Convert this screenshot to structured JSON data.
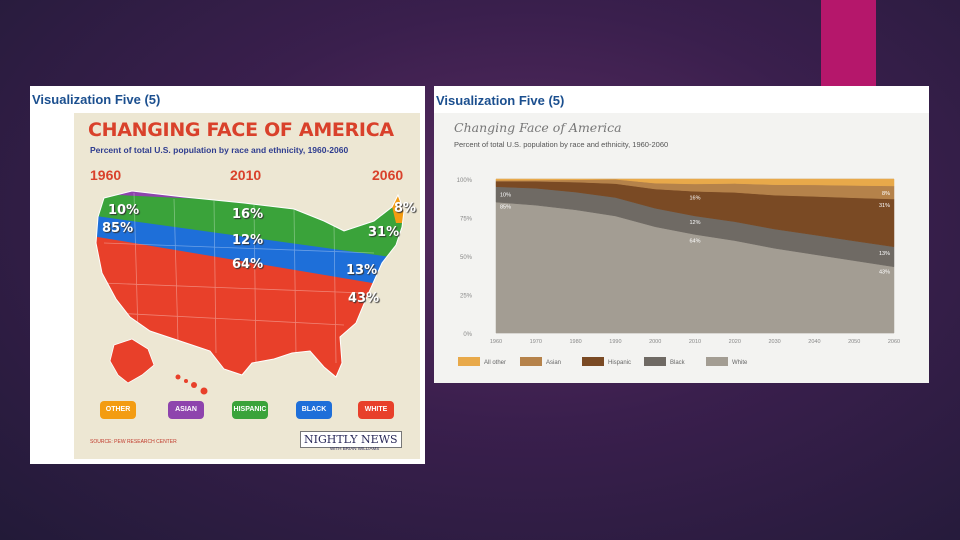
{
  "left_panel": {
    "heading": "Visualization Five (5)",
    "map": {
      "title": "CHANGING FACE OF AMERICA",
      "subtitle": "Percent of total U.S. population by race and ethnicity, 1960-2060",
      "years": [
        "1960",
        "2010",
        "2060"
      ],
      "labels": {
        "other_2060": "8%",
        "black_1960": "10%",
        "white_1960": "85%",
        "hispanic_2010": "16%",
        "black_2010": "12%",
        "white_2010": "64%",
        "hispanic_2060": "31%",
        "black_2060": "13%",
        "white_2060": "43%"
      },
      "legend": [
        {
          "label": "OTHER",
          "color": "#f39c12"
        },
        {
          "label": "ASIAN",
          "color": "#8e44ad"
        },
        {
          "label": "HISPANIC",
          "color": "#3aa33a"
        },
        {
          "label": "BLACK",
          "color": "#1e6fd9"
        },
        {
          "label": "WHITE",
          "color": "#e8402a"
        }
      ],
      "source": "SOURCE: PEW RESEARCH CENTER",
      "logo_text": "NIGHTLY NEWS",
      "logo_subtext": "WITH BRIAN WILLIAMS"
    }
  },
  "right_panel": {
    "heading": "Visualization Five (5)",
    "chart_title": "Changing Face of America",
    "chart_subtitle": "Percent of total U.S. population by race and ethnicity, 1960-2060"
  },
  "chart_data": [
    {
      "type": "area",
      "title": "Changing Face of America",
      "subtitle": "Percent of total U.S. population by race and ethnicity, 1960-2060",
      "stacked": true,
      "x": [
        1960,
        1970,
        1980,
        1990,
        2000,
        2010,
        2020,
        2030,
        2040,
        2050,
        2060
      ],
      "ylim": [
        0,
        100
      ],
      "yticks": [
        "0%",
        "25%",
        "50%",
        "75%",
        "100%"
      ],
      "grid": true,
      "legend_position": "bottom-left",
      "series": [
        {
          "name": "White",
          "color": "#a39d93",
          "values": [
            85,
            83,
            80,
            76,
            69,
            64,
            60,
            55,
            51,
            47,
            43
          ]
        },
        {
          "name": "Black",
          "color": "#6f6a64",
          "values": [
            10,
            11,
            11.5,
            12,
            12,
            12,
            12.3,
            12.5,
            12.7,
            12.8,
            13
          ]
        },
        {
          "name": "Hispanic",
          "color": "#7a4a24",
          "values": [
            3.5,
            4.5,
            6.5,
            9,
            12.5,
            16,
            19,
            22,
            25,
            28,
            31
          ]
        },
        {
          "name": "Asian",
          "color": "#b5824a",
          "values": [
            0.6,
            0.8,
            1.5,
            2.8,
            3.8,
            4.8,
            5.8,
            6.8,
            7.5,
            8,
            8.5
          ]
        },
        {
          "name": "All other",
          "color": "#e8a94a",
          "values": [
            0.9,
            0.7,
            0.5,
            0.2,
            2.7,
            3.2,
            2.9,
            3.7,
            3.8,
            4.2,
            4.5
          ]
        }
      ],
      "annotations": [
        {
          "x": 1960,
          "y": 90,
          "text": "10%"
        },
        {
          "x": 1960,
          "y": 82,
          "text": "85%"
        },
        {
          "x": 2010,
          "y": 88,
          "text": "16%"
        },
        {
          "x": 2010,
          "y": 72,
          "text": "12%"
        },
        {
          "x": 2010,
          "y": 60,
          "text": "64%"
        },
        {
          "x": 2060,
          "y": 91,
          "text": "8%"
        },
        {
          "x": 2060,
          "y": 83,
          "text": "31%"
        },
        {
          "x": 2060,
          "y": 52,
          "text": "13%"
        },
        {
          "x": 2060,
          "y": 40,
          "text": "43%"
        }
      ]
    }
  ]
}
